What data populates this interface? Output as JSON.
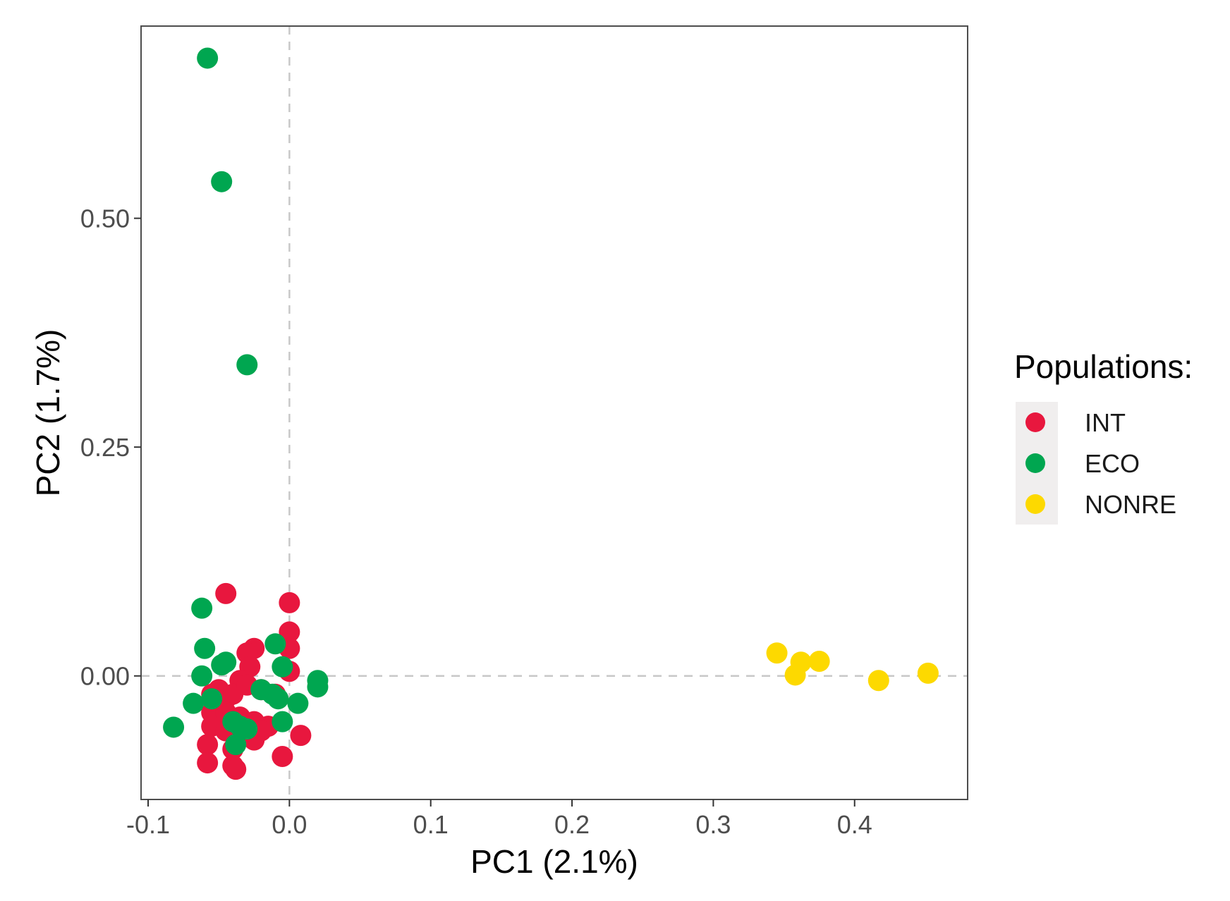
{
  "chart_data": {
    "type": "scatter",
    "title": "",
    "xlabel": "PC1 (2.1%)",
    "ylabel": "PC2 (1.7%)",
    "xlim": [
      -0.105,
      0.48
    ],
    "ylim": [
      -0.135,
      0.71
    ],
    "xticks": [
      {
        "value": -0.1,
        "label": "-0.1"
      },
      {
        "value": 0.0,
        "label": "0.0"
      },
      {
        "value": 0.1,
        "label": "0.1"
      },
      {
        "value": 0.2,
        "label": "0.2"
      },
      {
        "value": 0.3,
        "label": "0.3"
      },
      {
        "value": 0.4,
        "label": "0.4"
      }
    ],
    "yticks": [
      {
        "value": 0.0,
        "label": "0.00"
      },
      {
        "value": 0.25,
        "label": "0.25"
      },
      {
        "value": 0.5,
        "label": "0.50"
      }
    ],
    "reference_lines": {
      "x": 0,
      "y": 0,
      "style": "dashed"
    },
    "grid": false,
    "legend": {
      "title": "Populations:",
      "position": "right"
    },
    "series": [
      {
        "name": "INT",
        "color": "#e8173e",
        "points": [
          [
            -0.045,
            0.09
          ],
          [
            0.0,
            0.08
          ],
          [
            0.0,
            0.048
          ],
          [
            0.0,
            0.03
          ],
          [
            0.0,
            0.005
          ],
          [
            -0.025,
            0.03
          ],
          [
            -0.03,
            0.025
          ],
          [
            -0.028,
            0.01
          ],
          [
            -0.035,
            -0.005
          ],
          [
            -0.05,
            -0.015
          ],
          [
            -0.055,
            -0.02
          ],
          [
            -0.045,
            -0.025
          ],
          [
            -0.04,
            -0.02
          ],
          [
            -0.03,
            -0.01
          ],
          [
            -0.02,
            -0.015
          ],
          [
            -0.01,
            -0.02
          ],
          [
            -0.055,
            -0.04
          ],
          [
            -0.045,
            -0.04
          ],
          [
            -0.035,
            -0.045
          ],
          [
            -0.025,
            -0.05
          ],
          [
            -0.015,
            -0.055
          ],
          [
            -0.055,
            -0.055
          ],
          [
            -0.045,
            -0.06
          ],
          [
            -0.03,
            -0.065
          ],
          [
            -0.02,
            -0.06
          ],
          [
            -0.058,
            -0.075
          ],
          [
            -0.04,
            -0.08
          ],
          [
            -0.025,
            -0.07
          ],
          [
            0.008,
            -0.065
          ],
          [
            -0.058,
            -0.095
          ],
          [
            -0.04,
            -0.098
          ],
          [
            -0.038,
            -0.102
          ],
          [
            -0.005,
            -0.088
          ]
        ]
      },
      {
        "name": "ECO",
        "color": "#00a650",
        "points": [
          [
            -0.058,
            0.675
          ],
          [
            -0.048,
            0.54
          ],
          [
            -0.03,
            0.34
          ],
          [
            -0.062,
            0.074
          ],
          [
            -0.06,
            0.03
          ],
          [
            -0.062,
            0.0
          ],
          [
            -0.048,
            0.012
          ],
          [
            -0.045,
            0.015
          ],
          [
            -0.01,
            0.035
          ],
          [
            -0.005,
            0.01
          ],
          [
            0.02,
            -0.005
          ],
          [
            0.02,
            -0.012
          ],
          [
            -0.02,
            -0.015
          ],
          [
            -0.012,
            -0.02
          ],
          [
            0.006,
            -0.03
          ],
          [
            -0.068,
            -0.03
          ],
          [
            -0.055,
            -0.025
          ],
          [
            -0.04,
            -0.05
          ],
          [
            -0.035,
            -0.055
          ],
          [
            -0.005,
            -0.05
          ],
          [
            -0.082,
            -0.056
          ],
          [
            -0.038,
            -0.075
          ],
          [
            -0.03,
            -0.058
          ],
          [
            -0.008,
            -0.025
          ]
        ]
      },
      {
        "name": "NONRE",
        "color": "#fdd900",
        "points": [
          [
            0.345,
            0.025
          ],
          [
            0.362,
            0.015
          ],
          [
            0.375,
            0.016
          ],
          [
            0.358,
            0.001
          ],
          [
            0.417,
            -0.005
          ],
          [
            0.452,
            0.003
          ]
        ]
      }
    ]
  }
}
